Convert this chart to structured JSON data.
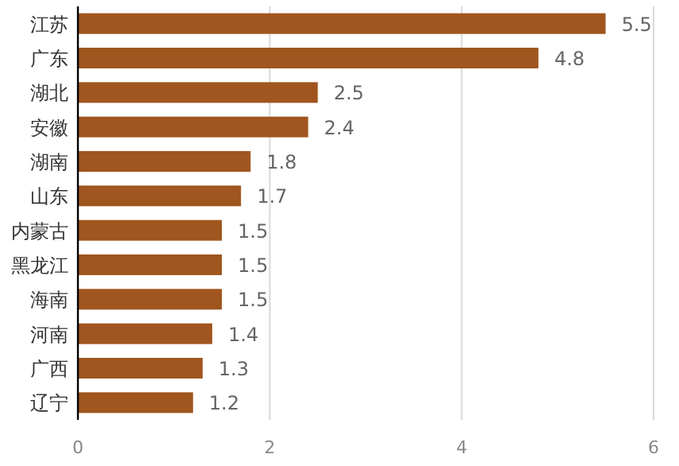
{
  "chart_data": {
    "type": "bar",
    "orientation": "horizontal",
    "categories": [
      "江苏",
      "广东",
      "湖北",
      "安徽",
      "湖南",
      "山东",
      "内蒙古",
      "黑龙江",
      "海南",
      "河南",
      "广西",
      "辽宁"
    ],
    "values": [
      5.5,
      4.8,
      2.5,
      2.4,
      1.8,
      1.7,
      1.5,
      1.5,
      1.5,
      1.4,
      1.3,
      1.2
    ],
    "color": "#a0561e",
    "xlim": [
      0,
      6
    ],
    "xticks": [
      0,
      2,
      4,
      6
    ],
    "grid": "x",
    "data_labels": true
  }
}
